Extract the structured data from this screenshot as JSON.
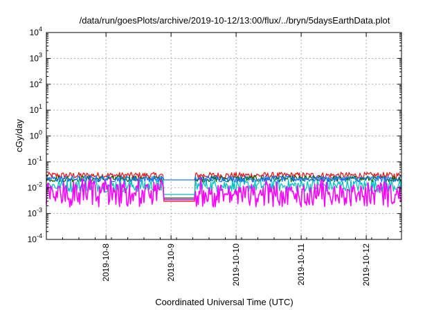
{
  "chart_data": {
    "type": "line",
    "title": "/data/run/goesPlots/archive/2019-10-12/13:00/flux/../bryn/5daysEarthData.plot",
    "xlabel": "Coordinated Universal Time (UTC)",
    "ylabel": "cGy/day",
    "yscale": "log",
    "ylim": [
      0.0001,
      10000
    ],
    "xlim": [
      "2019-10-07T02:00",
      "2019-10-12T13:00"
    ],
    "y_ticks": [
      {
        "value": 0.0001,
        "base": "10",
        "exp": "-4"
      },
      {
        "value": 0.001,
        "base": "10",
        "exp": "-3"
      },
      {
        "value": 0.01,
        "base": "10",
        "exp": "-2"
      },
      {
        "value": 0.1,
        "base": "10",
        "exp": "-1"
      },
      {
        "value": 1,
        "base": "10",
        "exp": "0"
      },
      {
        "value": 10,
        "base": "10",
        "exp": "1"
      },
      {
        "value": 100,
        "base": "10",
        "exp": "2"
      },
      {
        "value": 1000,
        "base": "10",
        "exp": "3"
      },
      {
        "value": 10000,
        "base": "10",
        "exp": "4"
      }
    ],
    "x_ticks": [
      "2019-10-8",
      "2019-10-9",
      "2019-10-10",
      "2019-10-11",
      "2019-10-12"
    ],
    "grid": true,
    "data_gap": [
      "2019-10-08T21:00",
      "2019-10-09T09:00"
    ],
    "series": [
      {
        "color": "#e41a1c",
        "baseline": 0.03,
        "noise": 0.12,
        "gap_level": 0.003
      },
      {
        "color": "#006400",
        "baseline": 0.022,
        "noise": 0.12,
        "gap_level": 0.004
      },
      {
        "color": "#00c0c0",
        "baseline": 0.012,
        "noise": 0.25,
        "gap_level": 0.0055
      },
      {
        "color": "#1e78ff",
        "baseline": 0.022,
        "noise": 0.12,
        "gap_level": 0.02
      },
      {
        "color": "#ff00ff",
        "baseline": 0.005,
        "noise": 0.45,
        "gap_level": 0.0035,
        "dropouts": [
          "2019-10-08T17:30",
          "2019-10-09T19:30",
          "2019-10-10T19:30",
          "2019-10-11T19:30"
        ]
      }
    ]
  }
}
